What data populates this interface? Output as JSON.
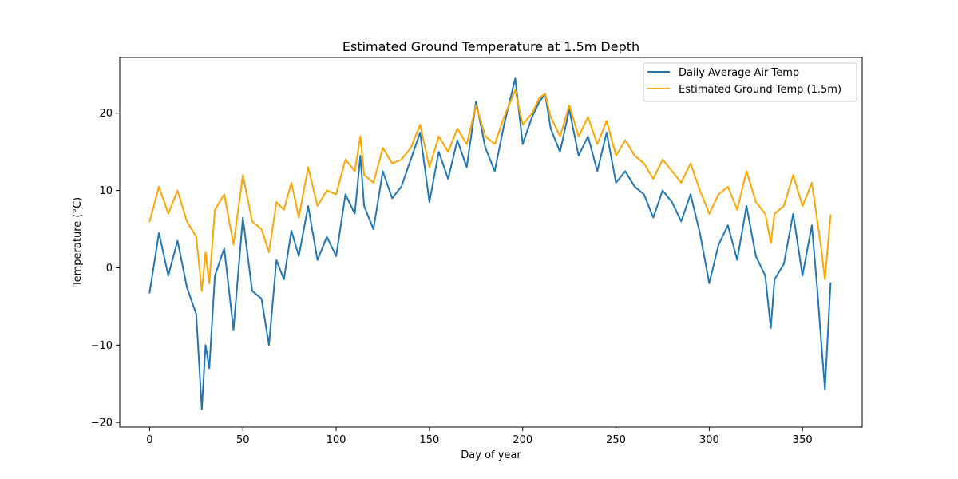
{
  "chart_data": {
    "type": "line",
    "title": "Estimated Ground Temperature at 1.5m Depth",
    "xlabel": "Day of year",
    "ylabel": "Temperature (°C)",
    "xlim": [
      -16,
      382
    ],
    "ylim": [
      -20.6,
      27.2
    ],
    "xticks": [
      0,
      50,
      100,
      150,
      200,
      250,
      300,
      350
    ],
    "yticks": [
      -20,
      -10,
      0,
      10,
      20
    ],
    "grid": false,
    "legend_position": "top-right",
    "x": [
      0,
      5,
      10,
      15,
      20,
      25,
      28,
      30,
      32,
      35,
      40,
      45,
      50,
      55,
      60,
      64,
      68,
      72,
      76,
      80,
      85,
      90,
      95,
      100,
      105,
      110,
      113,
      115,
      120,
      125,
      130,
      135,
      140,
      145,
      150,
      155,
      160,
      165,
      170,
      175,
      180,
      185,
      190,
      196,
      200,
      205,
      209,
      212,
      215,
      220,
      225,
      230,
      235,
      240,
      245,
      250,
      255,
      260,
      265,
      270,
      275,
      280,
      285,
      290,
      295,
      300,
      305,
      310,
      315,
      320,
      325,
      330,
      333,
      335,
      340,
      345,
      350,
      355,
      358,
      360,
      362,
      365
    ],
    "series": [
      {
        "name": "Daily Average Air Temp",
        "color": "#1f77b4",
        "values": [
          -3.2,
          4.5,
          -1.0,
          3.5,
          -2.5,
          -6.0,
          -18.3,
          -10.0,
          -13.0,
          -1.0,
          2.5,
          -8.0,
          6.5,
          -3.0,
          -4.0,
          -10.0,
          1.0,
          -1.5,
          4.8,
          1.5,
          8.0,
          1.0,
          4.0,
          1.5,
          9.5,
          7.0,
          14.5,
          8.0,
          5.0,
          12.5,
          9.0,
          10.5,
          14.0,
          17.5,
          8.5,
          15.0,
          11.5,
          16.5,
          13.0,
          21.5,
          15.5,
          12.5,
          18.5,
          24.5,
          16.0,
          19.5,
          21.5,
          22.5,
          18.0,
          15.0,
          20.5,
          14.5,
          17.0,
          12.5,
          17.5,
          11.0,
          12.5,
          10.5,
          9.5,
          6.5,
          10.0,
          8.5,
          6.0,
          9.5,
          4.5,
          -2.0,
          3.0,
          5.5,
          1.0,
          8.0,
          1.5,
          -1.0,
          -7.8,
          -1.5,
          0.5,
          7.0,
          -1.0,
          5.5,
          -3.0,
          -9.5,
          -15.7,
          -2.0
        ],
        "line_width": 2
      },
      {
        "name": "Estimated Ground Temp (1.5m)",
        "color": "#ffa500",
        "values": [
          6.0,
          10.5,
          7.0,
          10.0,
          6.0,
          4.0,
          -3.0,
          2.0,
          -2.0,
          7.5,
          9.5,
          3.0,
          12.0,
          6.0,
          5.0,
          2.0,
          8.5,
          7.5,
          11.0,
          6.5,
          13.0,
          8.0,
          10.0,
          9.5,
          14.0,
          12.5,
          17.0,
          12.0,
          11.0,
          15.5,
          13.5,
          14.0,
          15.5,
          18.5,
          13.0,
          17.0,
          15.0,
          18.0,
          16.0,
          21.0,
          17.0,
          16.0,
          19.5,
          23.0,
          18.5,
          20.0,
          22.0,
          22.5,
          19.5,
          17.0,
          21.0,
          17.0,
          19.5,
          16.0,
          19.0,
          14.5,
          16.5,
          14.5,
          13.5,
          11.5,
          14.0,
          12.5,
          11.0,
          13.5,
          10.0,
          7.0,
          9.5,
          10.5,
          7.5,
          12.5,
          8.5,
          7.0,
          3.2,
          7.0,
          8.0,
          12.0,
          8.0,
          11.0,
          6.0,
          2.5,
          -1.5,
          6.8
        ],
        "line_width": 2
      }
    ]
  }
}
